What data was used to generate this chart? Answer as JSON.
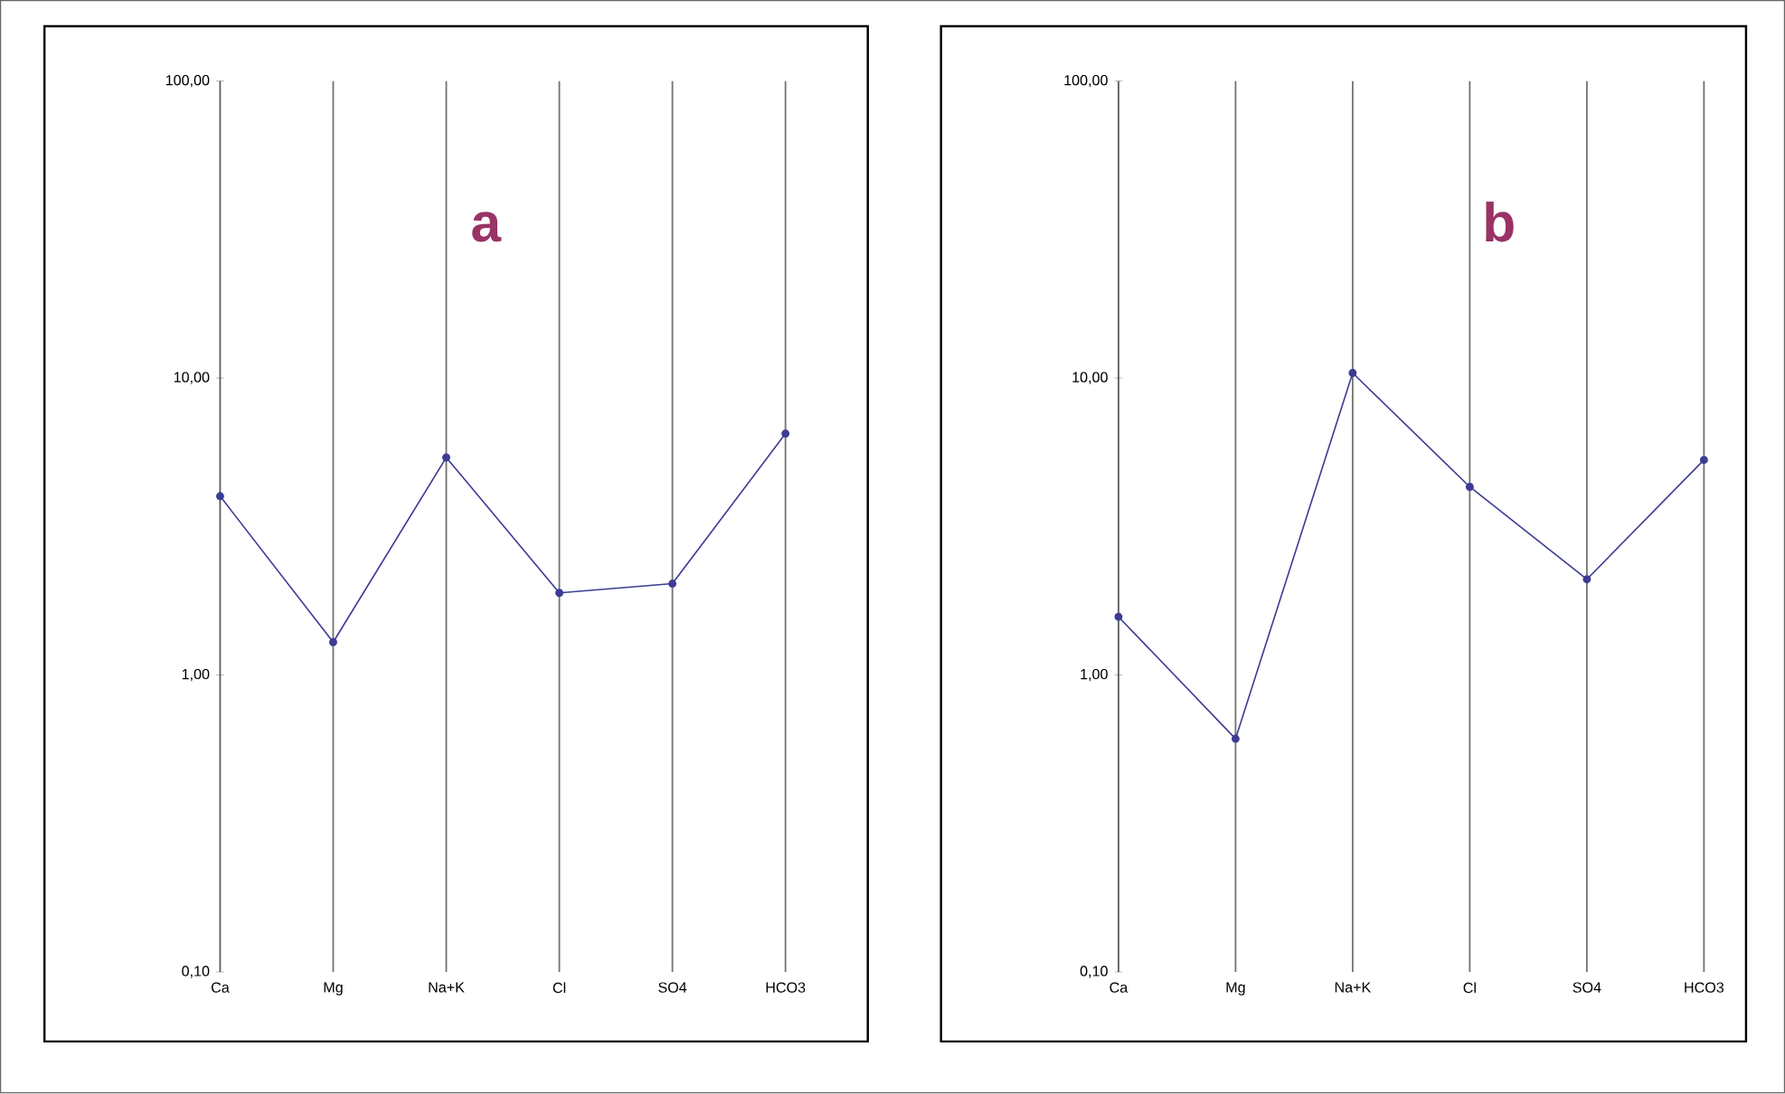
{
  "chart_data": [
    {
      "type": "line",
      "title": "a",
      "categories": [
        "Ca",
        "Mg",
        "Na+K",
        "Cl",
        "SO4",
        "HCO3"
      ],
      "values": [
        4.0,
        1.29,
        5.4,
        1.89,
        2.03,
        6.5
      ],
      "color": "#3c3c96",
      "marker": "circle",
      "log": "y",
      "grid": "x",
      "ylim": [
        0.1,
        100
      ],
      "yticks": [
        {
          "value": 0.1,
          "label": "0,10"
        },
        {
          "value": 1,
          "label": "1,00"
        },
        {
          "value": 10,
          "label": "10,00"
        },
        {
          "value": 100,
          "label": "100,00"
        }
      ]
    },
    {
      "type": "line",
      "title": "b",
      "categories": [
        "Ca",
        "Mg",
        "Na+K",
        "Cl",
        "SO4",
        "HCO3"
      ],
      "values": [
        1.57,
        0.61,
        10.4,
        4.3,
        2.1,
        5.3
      ],
      "color": "#3c3c96",
      "marker": "circle",
      "log": "y",
      "grid": "x",
      "ylim": [
        0.1,
        100
      ],
      "yticks": [
        {
          "value": 0.1,
          "label": "0,10"
        },
        {
          "value": 1,
          "label": "1,00"
        },
        {
          "value": 10,
          "label": "10,00"
        },
        {
          "value": 100,
          "label": "100,00"
        }
      ]
    }
  ]
}
